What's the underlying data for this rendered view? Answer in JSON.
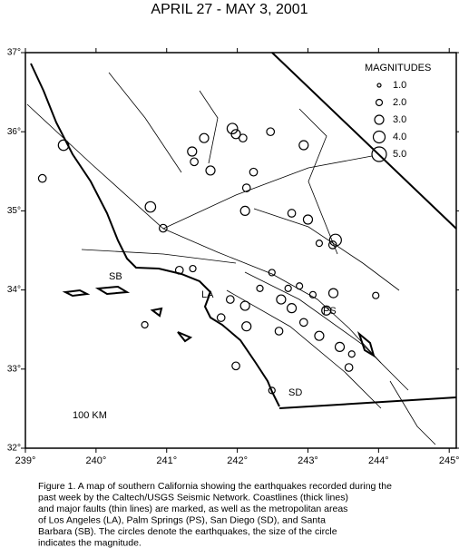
{
  "chart_data": {
    "type": "scatter",
    "title": "APRIL 27 - MAY 3, 2001",
    "legend_title": "MAGNITUDES",
    "legend_sizes": [
      {
        "value": 1,
        "label": "1.0"
      },
      {
        "value": 2,
        "label": "2.0"
      },
      {
        "value": 3,
        "label": "3.0"
      },
      {
        "value": 4,
        "label": "4.0"
      },
      {
        "value": 5,
        "label": "5.0"
      }
    ],
    "place_labels": [
      "SB",
      "LA",
      "PS",
      "SD"
    ],
    "scale_label": "100 KM",
    "caption": [
      "Figure 1. A map of southern California showing the earthquakes recorded during the",
      "past week by the Caltech/USGS Seismic Network.  Coastlines (thick lines)",
      "and major faults (thin lines) are marked, as well as the metropolitan areas",
      "of Los Angeles (LA), Palm Springs (PS), San Diego (SD), and Santa",
      "Barbara (SB).  The circles denote the earthquakes, the size of the circle",
      "indicates the magnitude."
    ],
    "x": [
      239.54,
      239.24,
      240.77,
      240.95,
      241.36,
      241.39,
      241.53,
      241.62,
      241.93,
      241.98,
      242.08,
      242.47,
      242.94,
      242.23,
      242.13,
      242.11,
      242.77,
      243.0,
      243.39,
      243.35,
      243.16,
      243.96,
      243.36,
      242.49,
      242.32,
      242.11,
      241.9,
      241.18,
      241.37,
      241.77,
      242.13,
      241.98,
      242.62,
      242.77,
      242.94,
      242.59,
      243.16,
      243.45,
      243.58,
      242.88,
      243.07,
      242.49,
      240.69,
      243.62,
      243.26,
      242.72
    ],
    "values": [
      35.83,
      35.41,
      35.05,
      34.78,
      35.75,
      35.62,
      35.92,
      35.51,
      36.04,
      35.97,
      35.92,
      36.0,
      35.83,
      35.49,
      35.29,
      35.0,
      34.97,
      34.89,
      34.63,
      34.57,
      34.59,
      33.93,
      33.96,
      34.22,
      34.02,
      33.8,
      33.88,
      34.25,
      34.27,
      33.65,
      33.54,
      33.04,
      33.88,
      33.77,
      33.59,
      33.48,
      33.42,
      33.28,
      33.02,
      34.05,
      33.94,
      32.73,
      33.56,
      33.19,
      33.74,
      34.02
    ],
    "sizes": [
      3.5,
      2.5,
      3.5,
      2.5,
      3.0,
      2.5,
      3.0,
      3.0,
      3.5,
      3.0,
      2.5,
      2.5,
      3.0,
      2.5,
      2.5,
      3.0,
      2.5,
      3.0,
      4.0,
      2.5,
      2.0,
      2.0,
      3.0,
      2.0,
      2.0,
      3.0,
      2.5,
      2.5,
      2.0,
      2.5,
      3.0,
      2.5,
      3.0,
      3.0,
      2.5,
      2.5,
      3.0,
      3.0,
      2.5,
      2.0,
      2.0,
      2.0,
      2.0,
      2.0,
      3.0,
      2.0
    ],
    "xlim": [
      239,
      245.1
    ],
    "ylim": [
      32,
      37
    ],
    "xticks": [
      {
        "value": 239,
        "label": "239°"
      },
      {
        "value": 240,
        "label": "240°"
      },
      {
        "value": 241,
        "label": "241°"
      },
      {
        "value": 242,
        "label": "242°"
      },
      {
        "value": 243,
        "label": "243°"
      },
      {
        "value": 244,
        "label": "244°"
      },
      {
        "value": 245,
        "label": "245°"
      }
    ],
    "yticks": [
      {
        "value": 32,
        "label": "32°"
      },
      {
        "value": 33,
        "label": "33°"
      },
      {
        "value": 34,
        "label": "34°"
      },
      {
        "value": 35,
        "label": "35°"
      },
      {
        "value": 36,
        "label": "36°"
      },
      {
        "value": 37,
        "label": "37°"
      }
    ],
    "color": "#000000"
  }
}
